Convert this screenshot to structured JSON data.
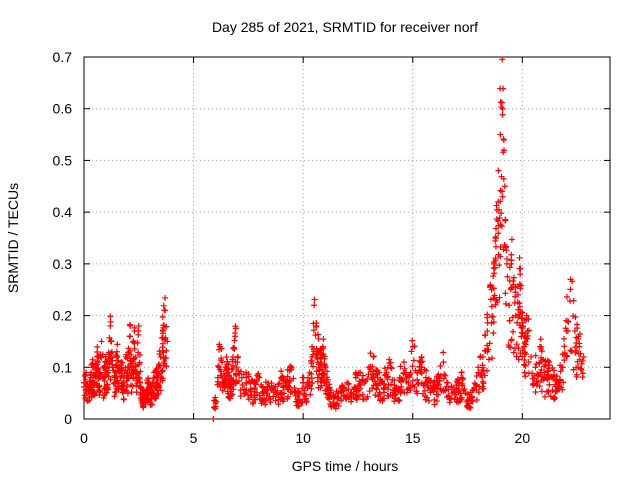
{
  "chart_data": {
    "type": "scatter",
    "title": "Day 285 of 2021, SRMTID for receiver norf",
    "xlabel": "GPS time / hours",
    "ylabel": "SRMTID / TECUs",
    "xlim": [
      0,
      24
    ],
    "ylim": [
      0,
      0.7
    ],
    "xticks": [
      0,
      5,
      10,
      15,
      20
    ],
    "yticks": [
      0,
      0.1,
      0.2,
      0.3,
      0.4,
      0.5,
      0.6,
      0.7
    ],
    "xtick_labels": [
      "0",
      "5",
      "10",
      "15",
      "20"
    ],
    "ytick_labels": [
      "0",
      "0.1",
      "0.2",
      "0.3",
      "0.4",
      "0.5",
      "0.6",
      "0.7"
    ],
    "grid": true,
    "marker": "+",
    "series": [
      {
        "name": "SRMTID",
        "color": "#ff0000",
        "x": [
          0.0,
          0.1,
          0.2,
          0.3,
          0.4,
          0.5,
          0.6,
          0.7,
          0.8,
          0.9,
          1.0,
          1.1,
          1.2,
          1.3,
          1.4,
          1.5,
          1.6,
          1.7,
          1.8,
          1.9,
          2.0,
          2.1,
          2.2,
          2.3,
          2.4,
          2.5,
          2.6,
          2.7,
          2.8,
          2.9,
          3.0,
          3.1,
          3.2,
          3.3,
          3.4,
          3.5,
          3.6,
          3.7,
          3.8,
          5.9,
          6.1,
          6.2,
          6.3,
          6.4,
          6.5,
          6.6,
          6.7,
          6.8,
          6.9,
          7.0,
          7.2,
          7.4,
          7.6,
          7.8,
          8.0,
          8.2,
          8.4,
          8.6,
          8.8,
          9.0,
          9.2,
          9.4,
          9.6,
          9.8,
          10.0,
          10.2,
          10.4,
          10.5,
          10.6,
          10.7,
          10.8,
          10.9,
          11.0,
          11.2,
          11.4,
          11.6,
          11.8,
          12.0,
          12.2,
          12.4,
          12.6,
          12.8,
          13.0,
          13.2,
          13.4,
          13.6,
          13.8,
          14.0,
          14.2,
          14.4,
          14.6,
          14.8,
          15.0,
          15.2,
          15.4,
          15.6,
          15.8,
          16.0,
          16.2,
          16.4,
          16.6,
          16.8,
          17.0,
          17.2,
          17.4,
          17.6,
          17.8,
          18.0,
          18.2,
          18.4,
          18.6,
          18.7,
          18.8,
          18.9,
          19.0,
          19.1,
          19.2,
          19.3,
          19.4,
          19.5,
          19.6,
          19.7,
          19.8,
          19.9,
          20.0,
          20.1,
          20.2,
          20.4,
          20.6,
          20.8,
          21.0,
          21.2,
          21.4,
          21.6,
          21.8,
          22.0,
          22.2,
          22.4,
          22.6,
          22.8
        ],
        "y": [
          0.07,
          0.09,
          0.06,
          0.08,
          0.1,
          0.07,
          0.12,
          0.09,
          0.15,
          0.08,
          0.11,
          0.09,
          0.18,
          0.1,
          0.08,
          0.13,
          0.09,
          0.11,
          0.07,
          0.12,
          0.1,
          0.16,
          0.09,
          0.17,
          0.08,
          0.18,
          0.06,
          0.05,
          0.04,
          0.07,
          0.06,
          0.05,
          0.09,
          0.08,
          0.1,
          0.12,
          0.17,
          0.21,
          0.15,
          0.0,
          0.08,
          0.14,
          0.11,
          0.07,
          0.1,
          0.09,
          0.06,
          0.12,
          0.16,
          0.11,
          0.08,
          0.09,
          0.07,
          0.06,
          0.08,
          0.05,
          0.07,
          0.06,
          0.05,
          0.08,
          0.07,
          0.1,
          0.06,
          0.05,
          0.07,
          0.06,
          0.12,
          0.22,
          0.18,
          0.13,
          0.11,
          0.14,
          0.1,
          0.06,
          0.04,
          0.05,
          0.06,
          0.07,
          0.05,
          0.08,
          0.09,
          0.07,
          0.1,
          0.12,
          0.08,
          0.07,
          0.09,
          0.1,
          0.06,
          0.08,
          0.11,
          0.07,
          0.14,
          0.09,
          0.1,
          0.08,
          0.07,
          0.06,
          0.08,
          0.11,
          0.07,
          0.05,
          0.06,
          0.08,
          0.05,
          0.04,
          0.06,
          0.09,
          0.12,
          0.17,
          0.25,
          0.3,
          0.35,
          0.42,
          0.55,
          0.6,
          0.45,
          0.3,
          0.22,
          0.3,
          0.26,
          0.2,
          0.24,
          0.28,
          0.18,
          0.16,
          0.2,
          0.12,
          0.1,
          0.14,
          0.09,
          0.11,
          0.08,
          0.07,
          0.1,
          0.19,
          0.27,
          0.17,
          0.14,
          0.12
        ],
        "points_drawn": 1500
      }
    ]
  }
}
